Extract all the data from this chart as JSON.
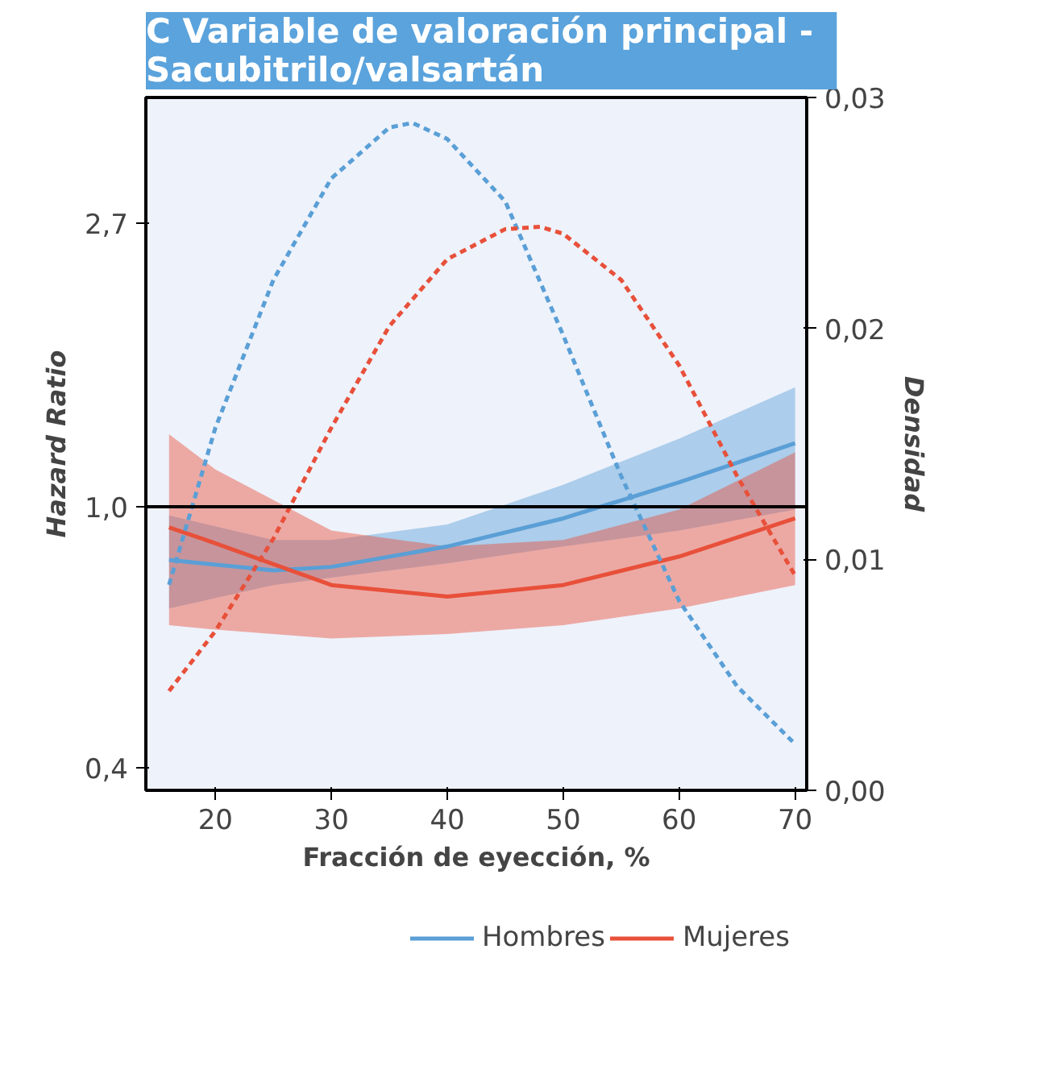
{
  "chart_data": {
    "type": "line",
    "title": "C   Variable de valoración principal -\nSacubitrilo/valsartán",
    "xlabel": "Fracción de eyección, %",
    "ylabel": "Hazard Ratio",
    "y2label": "Densidad",
    "log": "y",
    "grid": false,
    "legend": "bottom",
    "marker": "none",
    "xlim": [
      14,
      71
    ],
    "xticks": [
      20,
      30,
      40,
      50,
      60,
      70
    ],
    "ylim": [
      0.37,
      4.2
    ],
    "yticks": [
      {
        "value": 0.4,
        "label": "0,4"
      },
      {
        "value": 1.0,
        "label": "1,0"
      },
      {
        "value": 2.7,
        "label": "2,7"
      }
    ],
    "y2lim": [
      0,
      0.03
    ],
    "y2ticks": [
      {
        "value": 0,
        "label": "0,00"
      },
      {
        "value": 0.01,
        "label": "0,01"
      },
      {
        "value": 0.02,
        "label": "0,02"
      },
      {
        "value": 0.03,
        "label": "0,03"
      }
    ],
    "ref_lines": [
      {
        "axis": "y",
        "value": 1.0,
        "label": null,
        "color": "#000000"
      }
    ],
    "series": [
      {
        "name": "Hombres",
        "color": "#5a9fd6",
        "line_style": "solid",
        "x": [
          16,
          25,
          30,
          40,
          50,
          60,
          70
        ],
        "values": [
          0.83,
          0.8,
          0.81,
          0.87,
          0.96,
          1.09,
          1.25
        ],
        "lower": [
          0.7,
          0.76,
          0.78,
          0.82,
          0.87,
          0.92,
          0.99
        ],
        "upper": [
          0.97,
          0.89,
          0.89,
          0.94,
          1.08,
          1.27,
          1.52
        ]
      },
      {
        "name": "Mujeres",
        "color": "#e8503a",
        "line_style": "solid",
        "x": [
          16,
          20,
          30,
          40,
          50,
          60,
          70
        ],
        "values": [
          0.93,
          0.88,
          0.76,
          0.73,
          0.76,
          0.84,
          0.96
        ],
        "lower": [
          0.66,
          0.65,
          0.63,
          0.64,
          0.66,
          0.7,
          0.76
        ],
        "upper": [
          1.29,
          1.14,
          0.92,
          0.87,
          0.89,
          0.99,
          1.21
        ]
      },
      {
        "color": "#5a9fd6",
        "line_style": "dashed",
        "axis": "y2",
        "x": [
          16,
          20,
          25,
          30,
          35,
          37,
          40,
          45,
          50,
          55,
          60,
          65,
          70
        ],
        "values": [
          0.0089,
          0.0157,
          0.0221,
          0.0265,
          0.0287,
          0.0289,
          0.0282,
          0.0255,
          0.0197,
          0.0136,
          0.0082,
          0.0045,
          0.002
        ]
      },
      {
        "color": "#e8503a",
        "line_style": "dashed",
        "axis": "y2",
        "x": [
          16,
          20,
          25,
          30,
          35,
          40,
          45,
          48,
          50,
          55,
          60,
          65,
          70
        ],
        "values": [
          0.0043,
          0.0069,
          0.0109,
          0.0157,
          0.0201,
          0.023,
          0.0243,
          0.0244,
          0.0241,
          0.0221,
          0.0184,
          0.0136,
          0.0093
        ]
      }
    ]
  }
}
